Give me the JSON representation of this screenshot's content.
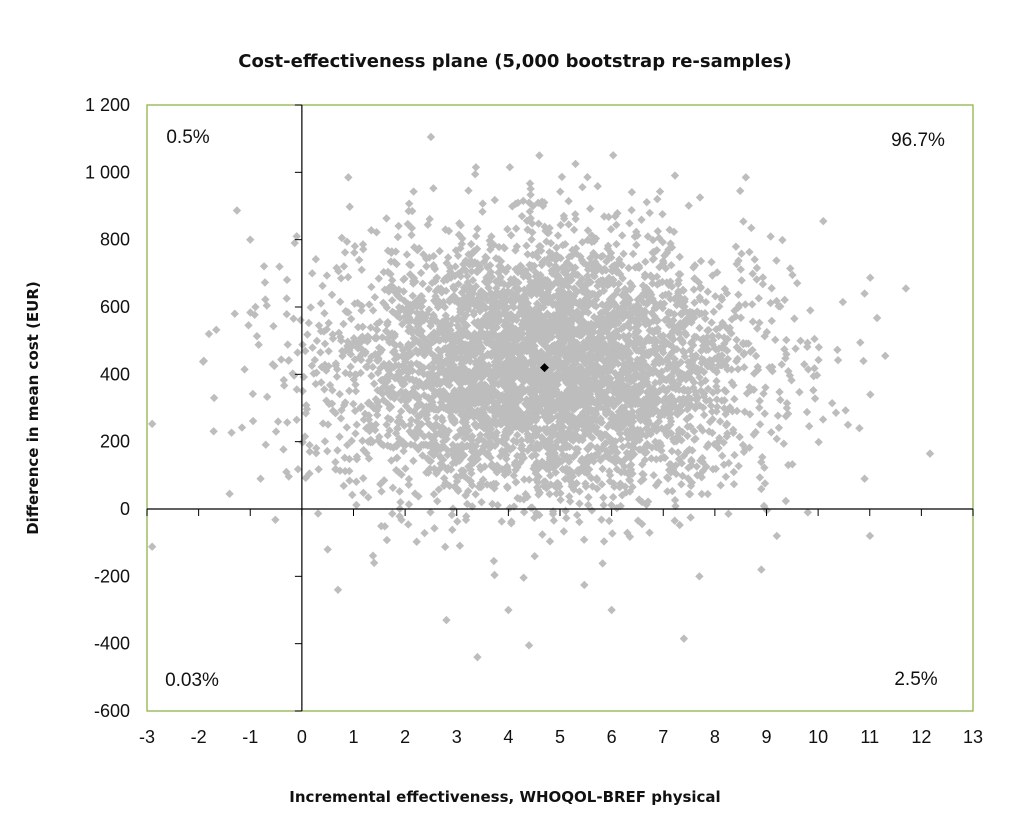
{
  "chart_data": {
    "type": "scatter",
    "title": "Cost-effectiveness plane (5,000 bootstrap re-samples)",
    "xlabel": "Incremental effectiveness, WHOQOL-BREF physical",
    "ylabel": "Difference in mean cost (EUR)",
    "xlim": [
      -3,
      13
    ],
    "ylim": [
      -600,
      1200
    ],
    "x_ticks": [
      "-3",
      "-2",
      "-1",
      "0",
      "1",
      "2",
      "3",
      "4",
      "5",
      "6",
      "7",
      "8",
      "9",
      "10",
      "11",
      "12",
      "13"
    ],
    "y_ticks": [
      "1 200",
      "1 000",
      "800",
      "600",
      "400",
      "200",
      "0",
      "-200",
      "-400",
      "-600"
    ],
    "grid": false,
    "quadrant_labels": {
      "top_left": "0.5%",
      "top_right": "96.7%",
      "bottom_left": "0.03%",
      "bottom_right": "2.5%"
    },
    "bootstrap": {
      "n": 5000,
      "mean": [
        4.7,
        420
      ],
      "sd": [
        2.0,
        190
      ],
      "color": "#bdbdbd",
      "outliers": [
        [
          -1.9,
          440
        ],
        [
          -1.7,
          330
        ],
        [
          -1.8,
          520
        ],
        [
          -1.4,
          45
        ],
        [
          -1.3,
          580
        ],
        [
          -1.0,
          800
        ],
        [
          -0.9,
          600
        ],
        [
          -0.5,
          230
        ],
        [
          -0.3,
          110
        ],
        [
          0.5,
          -120
        ],
        [
          0.7,
          -240
        ],
        [
          0.9,
          985
        ],
        [
          2.5,
          1105
        ],
        [
          3.4,
          -440
        ],
        [
          4.4,
          -405
        ],
        [
          4.6,
          1050
        ],
        [
          5.3,
          1025
        ],
        [
          6.0,
          -300
        ],
        [
          7.4,
          -385
        ],
        [
          8.6,
          985
        ],
        [
          10.1,
          855
        ],
        [
          10.9,
          640
        ],
        [
          11.3,
          455
        ],
        [
          11.7,
          655
        ],
        [
          10.8,
          240
        ],
        [
          10.9,
          90
        ],
        [
          9.8,
          -10
        ],
        [
          9.2,
          -80
        ],
        [
          8.9,
          -180
        ],
        [
          7.7,
          -200
        ],
        [
          2.8,
          -330
        ],
        [
          4.0,
          -300
        ],
        [
          1.4,
          -160
        ],
        [
          -0.8,
          90
        ],
        [
          -0.1,
          810
        ],
        [
          0.2,
          700
        ]
      ]
    },
    "point_estimate": {
      "x": 4.7,
      "y": 420,
      "color": "#000000"
    },
    "plot_border_color": "#8db54a",
    "axis_color": "#000000"
  }
}
